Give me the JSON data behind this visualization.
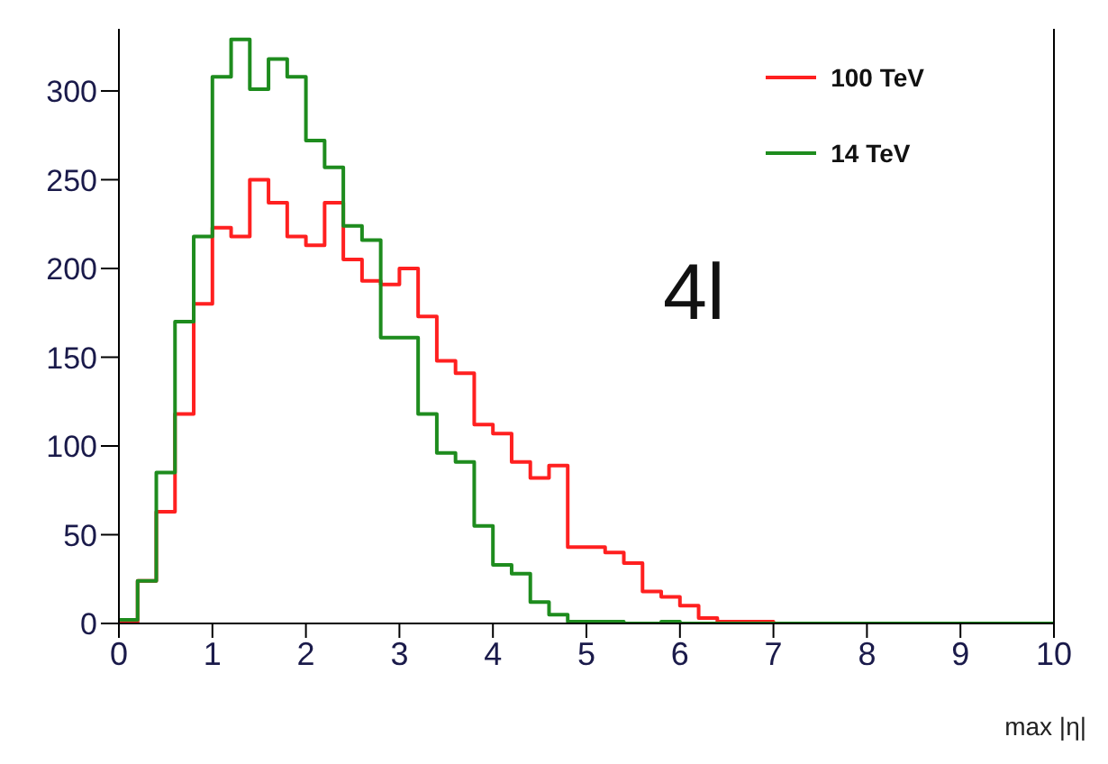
{
  "chart_data": {
    "type": "histogram",
    "xlabel": "max |η|",
    "annotations": [
      "4l"
    ],
    "bins": [
      0,
      0.2,
      0.4,
      0.6,
      0.8,
      1,
      1.2,
      1.4,
      1.6,
      1.8,
      2,
      2.2,
      2.4,
      2.6,
      2.8,
      3,
      3.2,
      3.4,
      3.6,
      3.8,
      4,
      4.2,
      4.4,
      4.6,
      4.8,
      5,
      5.2,
      5.4,
      5.6,
      5.8,
      6,
      6.2,
      6.4,
      6.6,
      6.8,
      7,
      7.2,
      7.4,
      7.6,
      7.8,
      8,
      8.2,
      8.4,
      8.6,
      8.8,
      9,
      9.2,
      9.4,
      9.6,
      9.8,
      10
    ],
    "series": [
      {
        "name": "100 TeV",
        "color": "#ff2020",
        "values": [
          0,
          24,
          63,
          118,
          180,
          223,
          218,
          250,
          237,
          218,
          213,
          237,
          205,
          193,
          191,
          200,
          173,
          148,
          141,
          112,
          107,
          91,
          82,
          89,
          43,
          43,
          40,
          34,
          18,
          15,
          10,
          3,
          1,
          1,
          1,
          0,
          0,
          0,
          0,
          0,
          0,
          0,
          0,
          0,
          0,
          0,
          0,
          0,
          0,
          0
        ]
      },
      {
        "name": "14 TeV",
        "color": "#1e8c1e",
        "values": [
          2,
          24,
          85,
          170,
          218,
          308,
          329,
          301,
          318,
          308,
          272,
          257,
          224,
          216,
          161,
          161,
          118,
          96,
          91,
          55,
          33,
          28,
          12,
          5,
          1,
          1,
          1,
          0,
          0,
          1,
          0,
          0,
          0,
          0,
          0,
          0,
          0,
          0,
          0,
          0,
          0,
          0,
          0,
          0,
          0,
          0,
          0,
          0,
          0,
          0
        ]
      }
    ],
    "xlim": [
      0,
      10
    ],
    "xticks": [
      0,
      1,
      2,
      3,
      4,
      5,
      6,
      7,
      8,
      9,
      10
    ],
    "ylim": [
      0,
      335
    ],
    "yticks": [
      0,
      50,
      100,
      150,
      200,
      250,
      300
    ],
    "grid": false,
    "legend": "top right"
  }
}
